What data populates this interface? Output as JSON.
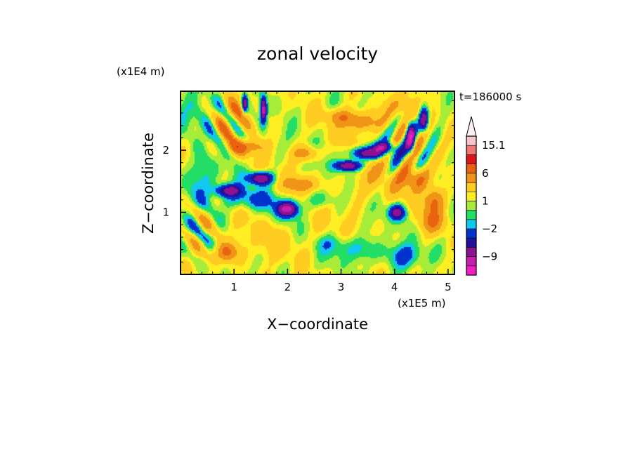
{
  "chart_data": {
    "type": "heatmap",
    "title": "zonal velocity",
    "xlabel": "X−coordinate",
    "ylabel": "Z−coordinate",
    "x_multiplier": "(x1E5 m)",
    "y_multiplier": "(x1E4 m)",
    "time_label": "t=186000 s",
    "xlim": [
      0,
      5.12
    ],
    "ylim": [
      0,
      2.95
    ],
    "x_ticks": [
      {
        "value": 1,
        "label": "1"
      },
      {
        "value": 2,
        "label": "2"
      },
      {
        "value": 3,
        "label": "3"
      },
      {
        "value": 4,
        "label": "4"
      },
      {
        "value": 5,
        "label": "5"
      }
    ],
    "y_ticks": [
      {
        "value": 1,
        "label": "1"
      },
      {
        "value": 2,
        "label": "2"
      }
    ],
    "colorbar": {
      "levels": [
        -15,
        -12,
        -9,
        -6,
        -4,
        -2,
        -1,
        0,
        1,
        2,
        4,
        6,
        9,
        12,
        15.1
      ],
      "colors": [
        "#ee1fc4",
        "#c81eab",
        "#8a1293",
        "#221199",
        "#0033cc",
        "#11c8ee",
        "#22dd66",
        "#a8ec3a",
        "#ffee22",
        "#ffcc22",
        "#f09418",
        "#e8620f",
        "#e01414",
        "#ee7777",
        "#f7c4c8"
      ],
      "extend_top_color": "#fdf0f0",
      "labels": [
        {
          "value": 15.1,
          "label": "15.1"
        },
        {
          "value": 6,
          "label": "6"
        },
        {
          "value": 1,
          "label": "1"
        },
        {
          "value": -2,
          "label": "−2"
        },
        {
          "value": -9,
          "label": "−9"
        }
      ]
    },
    "background_value": 1.2,
    "features": [
      {
        "x": 3.45,
        "z": 1.45,
        "sx": 0.55,
        "sz": 0.35,
        "amp": 2.0
      },
      {
        "x": 1.9,
        "z": 0.55,
        "sx": 0.9,
        "sz": 0.3,
        "amp": 1.2
      },
      {
        "x": 3.3,
        "z": 0.4,
        "sx": 0.4,
        "sz": 0.2,
        "amp": -3.0
      },
      {
        "x": 2.8,
        "z": 0.5,
        "sx": 0.3,
        "sz": 0.15,
        "amp": -2.2
      },
      {
        "x": 0.3,
        "z": 2.6,
        "sx": 0.35,
        "sz": 0.35,
        "amp": -2.4
      },
      {
        "x": 1.0,
        "z": 2.55,
        "sx": 0.3,
        "sz": 0.3,
        "amp": 2.8
      },
      {
        "x": 4.1,
        "z": 2.7,
        "sx": 0.3,
        "sz": 0.2,
        "amp": 3.0
      },
      {
        "x": 1.5,
        "z": 1.55,
        "sx": 0.22,
        "sz": 0.1,
        "amp": -10.5
      },
      {
        "x": 2.0,
        "z": 1.05,
        "sx": 0.2,
        "sz": 0.12,
        "amp": -11.0
      },
      {
        "x": 0.9,
        "z": 1.35,
        "sx": 0.25,
        "sz": 0.1,
        "amp": -8.5
      },
      {
        "x": 3.5,
        "z": 1.95,
        "sx": 0.3,
        "sz": 0.1,
        "amp": -10.5
      },
      {
        "x": 3.15,
        "z": 1.75,
        "sx": 0.25,
        "sz": 0.08,
        "amp": -10.0
      },
      {
        "x": 3.8,
        "z": 2.05,
        "sx": 0.2,
        "sz": 0.08,
        "amp": -8.0
      },
      {
        "x": 1.55,
        "z": 2.65,
        "sx": 0.06,
        "sz": 0.2,
        "amp": -12.0
      },
      {
        "x": 1.2,
        "z": 2.75,
        "sx": 0.05,
        "sz": 0.15,
        "amp": -9.0
      },
      {
        "x": 4.3,
        "z": 2.2,
        "sx": 0.08,
        "sz": 0.25,
        "amp": -10.0
      },
      {
        "x": 4.55,
        "z": 2.5,
        "sx": 0.08,
        "sz": 0.2,
        "amp": -9.0
      },
      {
        "x": 4.05,
        "z": 1.0,
        "sx": 0.15,
        "sz": 0.12,
        "amp": -9.0
      },
      {
        "x": 1.2,
        "z": 2.05,
        "sx": 0.3,
        "sz": 0.12,
        "amp": 5.5
      },
      {
        "x": 2.35,
        "z": 1.95,
        "sx": 0.25,
        "sz": 0.12,
        "amp": 4.5
      },
      {
        "x": 2.25,
        "z": 1.45,
        "sx": 0.3,
        "sz": 0.12,
        "amp": 4.0
      },
      {
        "x": 3.4,
        "z": 2.45,
        "sx": 0.35,
        "sz": 0.15,
        "amp": 5.0
      },
      {
        "x": 3.0,
        "z": 2.55,
        "sx": 0.3,
        "sz": 0.12,
        "amp": 3.5
      },
      {
        "x": 4.4,
        "z": 1.55,
        "sx": 0.25,
        "sz": 0.2,
        "amp": 6.5
      },
      {
        "x": 4.75,
        "z": 1.2,
        "sx": 0.2,
        "sz": 0.2,
        "amp": 5.0
      },
      {
        "x": 0.85,
        "z": 0.35,
        "sx": 0.25,
        "sz": 0.15,
        "amp": 5.0
      },
      {
        "x": 4.7,
        "z": 0.85,
        "sx": 0.25,
        "sz": 0.2,
        "amp": 4.0
      },
      {
        "x": 1.3,
        "z": 1.2,
        "sx": 0.5,
        "sz": 0.15,
        "amp": -3.5
      },
      {
        "x": 0.4,
        "z": 1.5,
        "sx": 0.3,
        "sz": 0.4,
        "amp": -3.0
      },
      {
        "x": 4.2,
        "z": 0.3,
        "sx": 0.35,
        "sz": 0.2,
        "amp": -4.0
      },
      {
        "x": 2.6,
        "z": 1.2,
        "sx": 0.3,
        "sz": 0.15,
        "amp": -3.0
      }
    ],
    "waves": [
      {
        "x0": 0.9,
        "z0": 2.4,
        "sx": 0.45,
        "sz": 0.45,
        "kx": 12,
        "kz": 10,
        "amp": 5.0
      },
      {
        "x0": 4.2,
        "z0": 2.1,
        "sx": 0.5,
        "sz": 0.55,
        "kx": 13,
        "kz": -9,
        "amp": 5.5
      },
      {
        "x0": 0.35,
        "z0": 0.7,
        "sx": 0.35,
        "sz": 0.45,
        "kx": 10,
        "kz": 11,
        "amp": 4.5
      },
      {
        "x0": 2.8,
        "z0": 1.4,
        "sx": 2.0,
        "sz": 1.2,
        "kx": 3.5,
        "kz": 4.5,
        "amp": 1.5
      }
    ]
  }
}
